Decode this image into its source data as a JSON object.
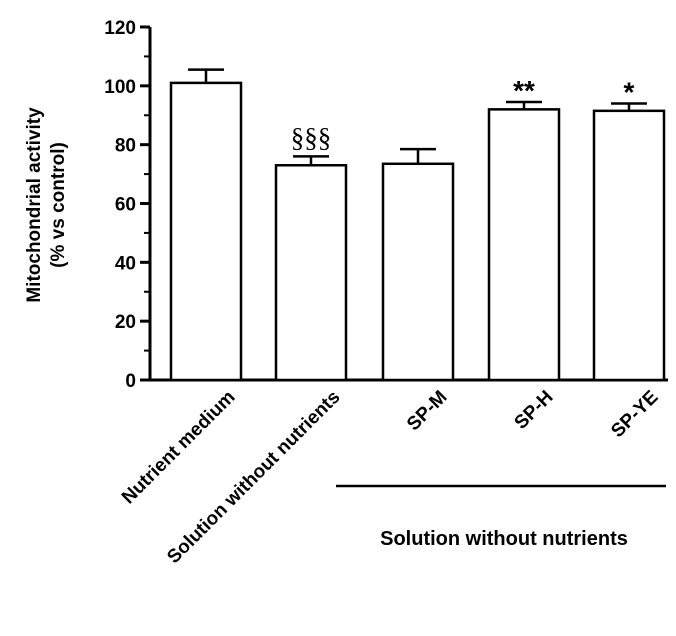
{
  "chart_data": {
    "type": "bar",
    "ylabel_line1": "Mitochondrial activity",
    "ylabel_line2": "(% vs control)",
    "ylim": [
      0,
      120
    ],
    "yticks": [
      0,
      20,
      40,
      60,
      80,
      100,
      120
    ],
    "categories": [
      "Nutrient medium",
      "Solution without nutrients",
      "SP-M",
      "SP-H",
      "SP-YE"
    ],
    "values": [
      101,
      73,
      73.5,
      92,
      91.5
    ],
    "errors": [
      4.5,
      3,
      5,
      2.5,
      2.5
    ],
    "annotations": [
      "",
      "§§§",
      "",
      "**",
      "*"
    ],
    "group_bracket": {
      "label": "Solution without nutrients",
      "spans_categories": [
        "SP-M",
        "SP-H",
        "SP-YE"
      ]
    },
    "bar_fill": "#ffffff",
    "bar_stroke": "#000000",
    "grid": false,
    "legend": "none"
  }
}
